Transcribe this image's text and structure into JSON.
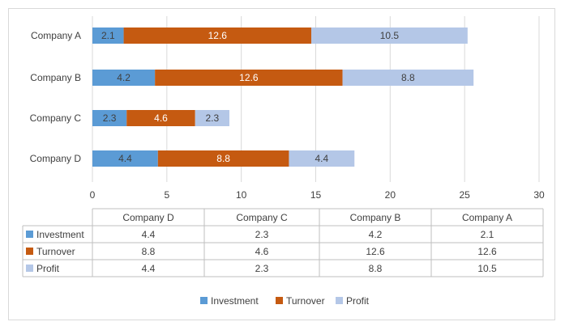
{
  "chart_data": {
    "type": "bar",
    "orientation": "horizontal",
    "stacked": true,
    "categories": [
      "Company A",
      "Company B",
      "Company C",
      "Company D"
    ],
    "series": [
      {
        "name": "Investment",
        "values": [
          2.1,
          4.2,
          2.3,
          4.4
        ],
        "color": "#5b9bd5",
        "label_color": "#404040"
      },
      {
        "name": "Turnover",
        "values": [
          12.6,
          12.6,
          4.6,
          8.8
        ],
        "color": "#c55a11",
        "label_color": "#ffffff"
      },
      {
        "name": "Profit",
        "values": [
          10.5,
          8.8,
          2.3,
          4.4
        ],
        "color": "#b4c7e7",
        "label_color": "#404040"
      }
    ],
    "xlim": [
      0,
      30
    ],
    "xticks": [
      "0",
      "5",
      "10",
      "15",
      "20",
      "25",
      "30"
    ],
    "grid": true,
    "legend_position": "bottom",
    "data_table": {
      "columns": [
        "Company D",
        "Company C",
        "Company B",
        "Company A"
      ],
      "rows": [
        {
          "series": "Investment",
          "values": [
            "4.4",
            "2.3",
            "4.2",
            "2.1"
          ]
        },
        {
          "series": "Turnover",
          "values": [
            "8.8",
            "4.6",
            "12.6",
            "12.6"
          ]
        },
        {
          "series": "Profit",
          "values": [
            "4.4",
            "2.3",
            "8.8",
            "10.5"
          ]
        }
      ]
    }
  }
}
